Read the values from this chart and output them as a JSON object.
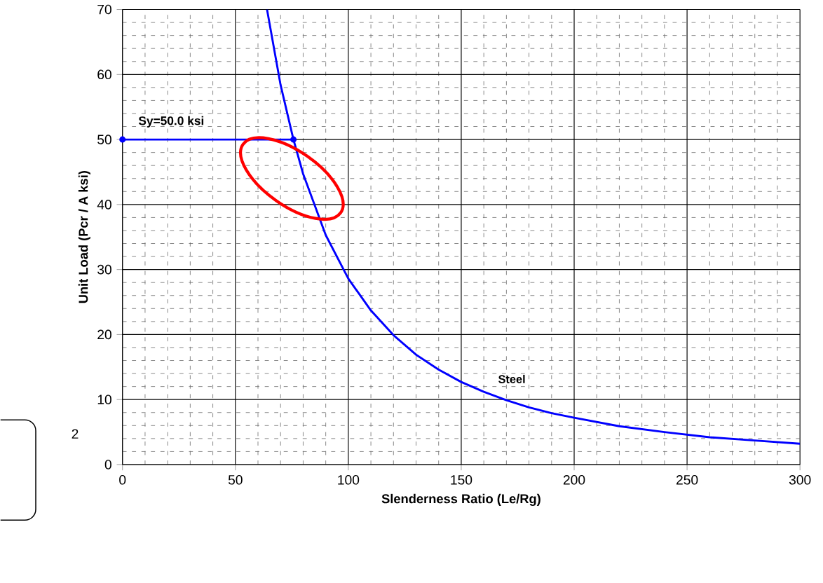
{
  "chart_data": {
    "type": "line",
    "xlabel": "Slenderness Ratio  (Le/Rg)",
    "ylabel": "Unit Load  (Pcr / A  ksi)",
    "xlim": [
      0,
      300
    ],
    "ylim": [
      0,
      70
    ],
    "xticks": [
      0,
      50,
      100,
      150,
      200,
      250,
      300
    ],
    "yticks": [
      0,
      10,
      20,
      30,
      40,
      50,
      60,
      70
    ],
    "grid": true,
    "series": [
      {
        "color": "#0000ff",
        "marker": "circle",
        "x": [
          0,
          75.7
        ],
        "values": [
          50,
          50
        ]
      },
      {
        "name": "Steel",
        "color": "#0000ff",
        "marker": "none",
        "x": [
          64,
          70,
          75.7,
          80,
          90,
          100,
          110,
          120,
          130,
          140,
          150,
          160,
          170,
          180,
          190,
          200,
          220,
          240,
          260,
          280,
          300
        ],
        "values": [
          70,
          58.4,
          50,
          44.7,
          35.3,
          28.6,
          23.7,
          19.9,
          16.9,
          14.6,
          12.7,
          11.2,
          9.9,
          8.8,
          7.9,
          7.2,
          5.9,
          5.0,
          4.2,
          3.7,
          3.2
        ]
      }
    ],
    "annotations": [
      {
        "text": "Sy=50.0 ksi",
        "x": 0,
        "y": 50
      },
      "2"
    ]
  }
}
